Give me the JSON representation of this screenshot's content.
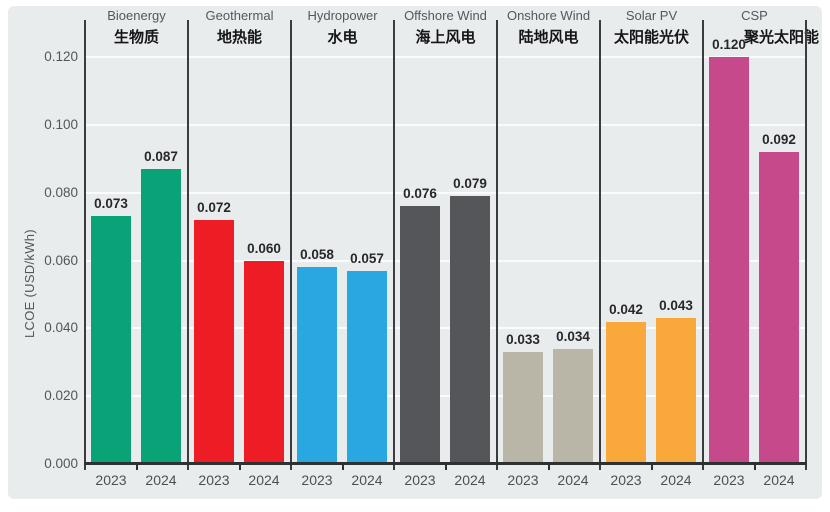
{
  "figure": {
    "y_axis_label": "LCOE (USD/kWh)",
    "panel_background": "#e8eced",
    "gridline_color": "#fafbfc",
    "axis_color": "#2e3032"
  },
  "chart_data": {
    "type": "bar",
    "title": "",
    "xlabel": "",
    "ylabel": "LCOE (USD/kWh)",
    "ylim": [
      0,
      0.13
    ],
    "grid": true,
    "legend_position": "none",
    "ytick_values": [
      0.0,
      0.02,
      0.04,
      0.06,
      0.08,
      0.1,
      0.12
    ],
    "ytick_labels": [
      "0.000",
      "0.020",
      "0.040",
      "0.060",
      "0.080",
      "0.100",
      "0.120"
    ],
    "categories": [
      "2023",
      "2024"
    ],
    "groups": [
      {
        "name_en": "Bioenergy",
        "name_zh": "生物质",
        "color": "#0aa377",
        "values": [
          0.073,
          0.087
        ],
        "value_labels": [
          "0.073",
          "0.087"
        ]
      },
      {
        "name_en": "Geothermal",
        "name_zh": "地热能",
        "color": "#ee1c24",
        "values": [
          0.072,
          0.06
        ],
        "value_labels": [
          "0.072",
          "0.060"
        ]
      },
      {
        "name_en": "Hydropower",
        "name_zh": "水电",
        "color": "#29a7e0",
        "values": [
          0.058,
          0.057
        ],
        "value_labels": [
          "0.058",
          "0.057"
        ]
      },
      {
        "name_en": "Offshore Wind",
        "name_zh": "海上风电",
        "color": "#54565a",
        "values": [
          0.076,
          0.079
        ],
        "value_labels": [
          "0.076",
          "0.079"
        ]
      },
      {
        "name_en": "Onshore Wind",
        "name_zh": "陆地风电",
        "color": "#b9b6a7",
        "values": [
          0.033,
          0.034
        ],
        "value_labels": [
          "0.033",
          "0.034"
        ]
      },
      {
        "name_en": "Solar PV",
        "name_zh": "太阳能光伏",
        "color": "#f9a83c",
        "values": [
          0.042,
          0.043
        ],
        "value_labels": [
          "0.042",
          "0.043"
        ]
      },
      {
        "name_en": "CSP",
        "name_zh": "聚光太阳能",
        "color": "#c5498b",
        "values": [
          0.12,
          0.092
        ],
        "value_labels": [
          "0.120",
          "0.092"
        ],
        "zh_offset_right": true
      }
    ]
  }
}
